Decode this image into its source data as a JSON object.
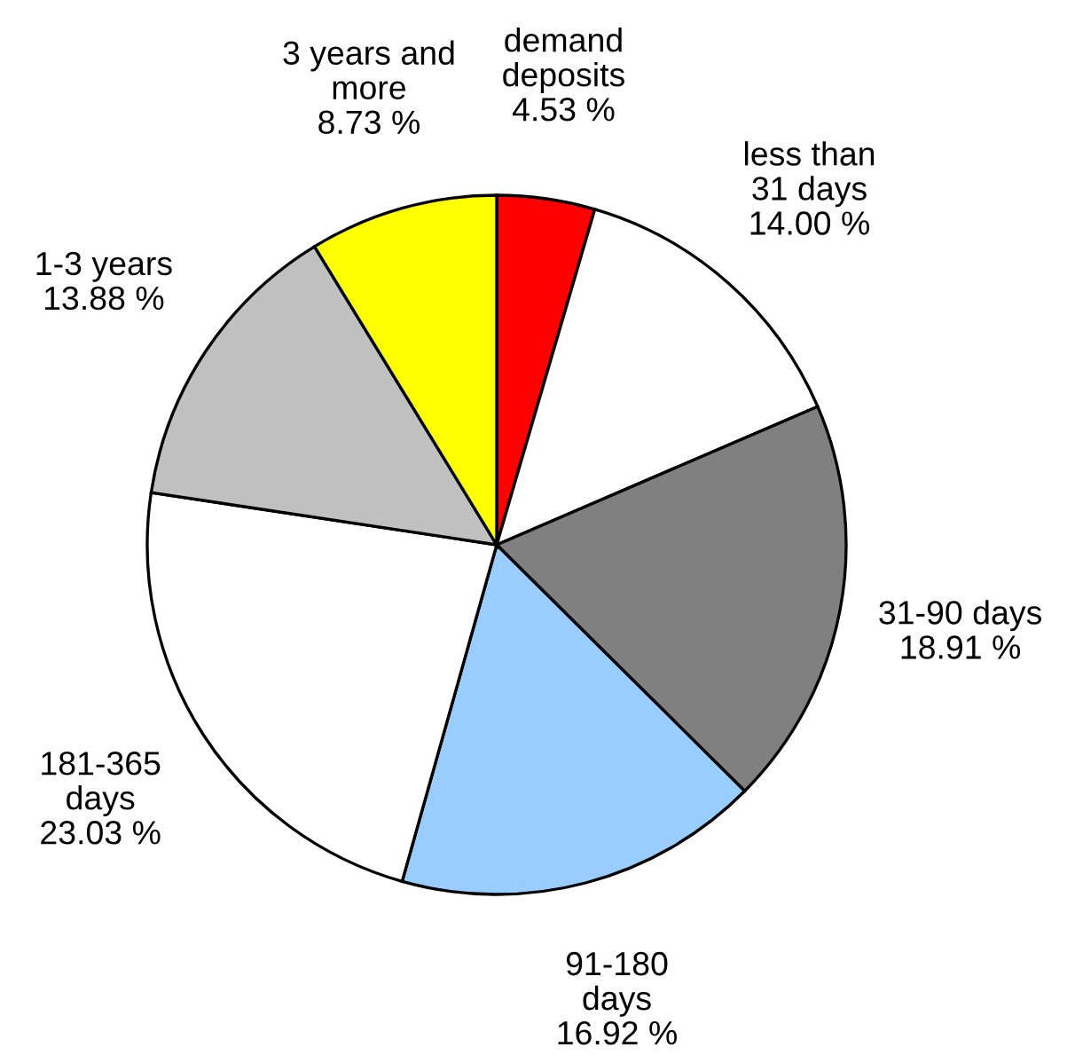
{
  "chart_data": {
    "type": "pie",
    "categories": [
      "demand\ndeposits",
      "less than\n31 days",
      "31-90 days",
      "91-180\ndays",
      "181-365\ndays",
      "1-3 years",
      "3 years and\nmore"
    ],
    "values": [
      4.53,
      14.0,
      18.91,
      16.92,
      23.03,
      13.88,
      8.73
    ],
    "value_labels": [
      "4.53 %",
      "14.00 %",
      "18.91 %",
      "16.92 %",
      "23.03 %",
      "13.88 %",
      "8.73 %"
    ],
    "colors": [
      "#ff0000",
      "#ffffff",
      "#808080",
      "#99ccff",
      "#ffffff",
      "#c0c0c0",
      "#ffff00"
    ],
    "legend": false
  }
}
